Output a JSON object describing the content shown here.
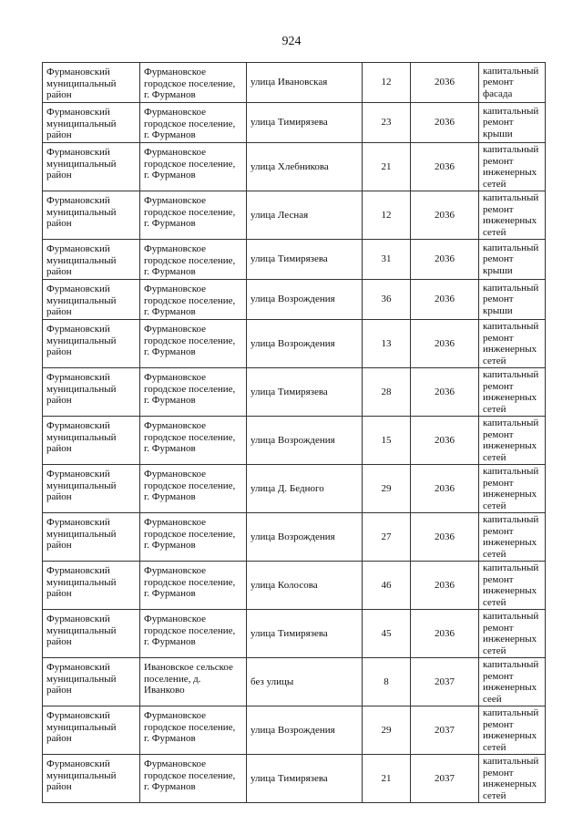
{
  "page_number": "924",
  "rows": [
    {
      "district": "Фурмановский муниципальный район",
      "settlement": "Фурмановское городское поселение, г. Фурманов",
      "street": "улица  Ивановская",
      "house": "12",
      "year": "2036",
      "work": "капитальный ремонт фасада"
    },
    {
      "district": "Фурмановский муниципальный район",
      "settlement": "Фурмановское городское поселение, г. Фурманов",
      "street": "улица Тимирязева",
      "house": "23",
      "year": "2036",
      "work": "капитальный ремонт крыши"
    },
    {
      "district": "Фурмановский муниципальный район",
      "settlement": "Фурмановское городское поселение, г. Фурманов",
      "street": "улица Хлебникова",
      "house": "21",
      "year": "2036",
      "work": "капитальный ремонт инженерных сетей"
    },
    {
      "district": "Фурмановский муниципальный район",
      "settlement": "Фурмановское городское поселение, г. Фурманов",
      "street": "улица Лесная",
      "house": "12",
      "year": "2036",
      "work": "капитальный ремонт инженерных сетей"
    },
    {
      "district": "Фурмановский муниципальный район",
      "settlement": "Фурмановское городское поселение, г. Фурманов",
      "street": "улица Тимирязева",
      "house": "31",
      "year": "2036",
      "work": "капитальный ремонт крыши"
    },
    {
      "district": "Фурмановский муниципальный район",
      "settlement": "Фурмановское городское поселение, г. Фурманов",
      "street": "улица Возрождения",
      "house": "36",
      "year": "2036",
      "work": "капитальный ремонт крыши"
    },
    {
      "district": "Фурмановский муниципальный район",
      "settlement": "Фурмановское городское поселение, г. Фурманов",
      "street": "улица Возрождения",
      "house": "13",
      "year": "2036",
      "work": "капитальный ремонт инженерных сетей"
    },
    {
      "district": "Фурмановский муниципальный район",
      "settlement": "Фурмановское городское поселение, г. Фурманов",
      "street": "улица Тимирязева",
      "house": "28",
      "year": "2036",
      "work": "капитальный ремонт инженерных сетей"
    },
    {
      "district": "Фурмановский муниципальный район",
      "settlement": "Фурмановское городское поселение, г. Фурманов",
      "street": "улица Возрождения",
      "house": "15",
      "year": "2036",
      "work": "капитальный ремонт инженерных сетей"
    },
    {
      "district": "Фурмановский муниципальный район",
      "settlement": "Фурмановское городское поселение, г. Фурманов",
      "street": "улица Д. Бедного",
      "house": "29",
      "year": "2036",
      "work": "капитальный ремонт инженерных сетей"
    },
    {
      "district": "Фурмановский муниципальный район",
      "settlement": "Фурмановское городское поселение, г. Фурманов",
      "street": "улица Возрождения",
      "house": "27",
      "year": "2036",
      "work": "капитальный ремонт инженерных сетей"
    },
    {
      "district": "Фурмановский муниципальный район",
      "settlement": "Фурмановское городское поселение, г. Фурманов",
      "street": "улица Колосова",
      "house": "46",
      "year": "2036",
      "work": "капитальный ремонт инженерных сетей"
    },
    {
      "district": "Фурмановский муниципальный район",
      "settlement": "Фурмановское городское поселение, г. Фурманов",
      "street": "улица Тимирязева",
      "house": "45",
      "year": "2036",
      "work": "капитальный ремонт инженерных сетей"
    },
    {
      "district": "Фурмановский муниципальный район",
      "settlement": "Ивановское сельское поселение, д. Иванково",
      "street": "без улицы",
      "house": "8",
      "year": "2037",
      "work": "капитальный ремонт инженерных сеей"
    },
    {
      "district": "Фурмановский муниципальный район",
      "settlement": "Фурмановское городское поселение, г. Фурманов",
      "street": "улица Возрождения",
      "house": "29",
      "year": "2037",
      "work": "капитальный ремонт инженерных сетей"
    },
    {
      "district": "Фурмановский муниципальный район",
      "settlement": "Фурмановское городское поселение, г. Фурманов",
      "street": "улица Тимирязева",
      "house": "21",
      "year": "2037",
      "work": "капитальный ремонт инженерных сетей"
    }
  ]
}
